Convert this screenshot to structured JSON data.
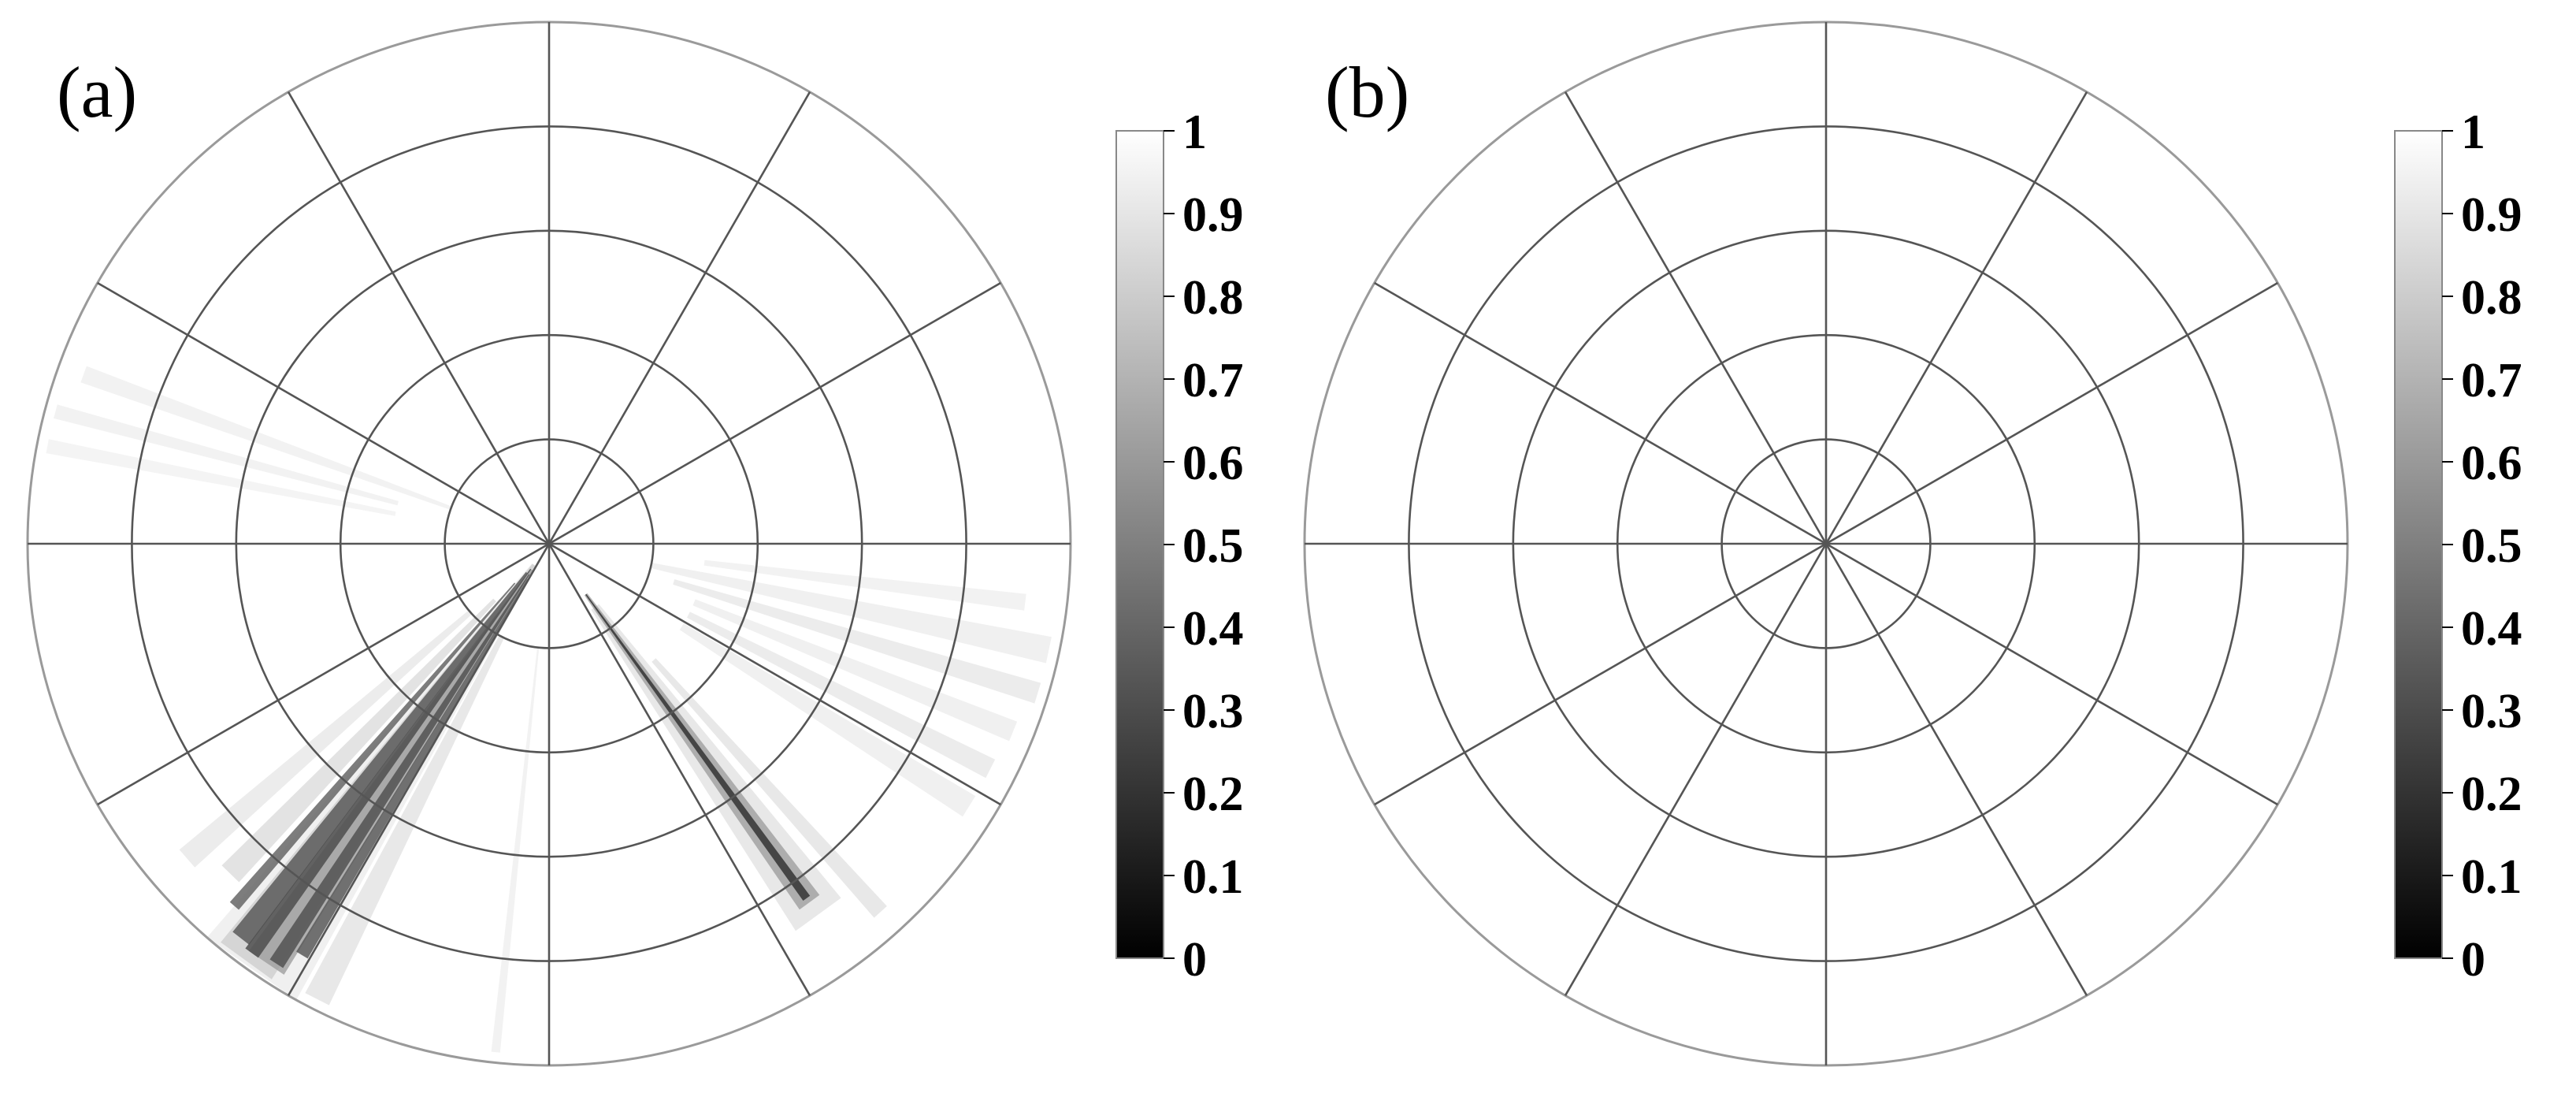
{
  "chart_data": [
    {
      "type": "heatmap",
      "projection": "polar",
      "panel_label": "(a)",
      "grid": true,
      "radial_rings": 5,
      "angular_spokes_deg": [
        0,
        30,
        60,
        90,
        120,
        150,
        180,
        210,
        240,
        270,
        300,
        330
      ],
      "colormap": "gray",
      "colorbar": {
        "range": [
          0,
          1
        ],
        "ticks": [
          "0",
          "0.1",
          "0.2",
          "0.3",
          "0.4",
          "0.5",
          "0.6",
          "0.7",
          "0.8",
          "0.9",
          "1"
        ],
        "placement": "right"
      },
      "background_value": 1,
      "streaks": [
        {
          "angle_deg": 235,
          "r_start": 0.05,
          "r_end": 1.0,
          "half_width_deg": 6.0,
          "value": 0.92
        },
        {
          "angle_deg": 234,
          "r_start": 0.05,
          "r_end": 0.99,
          "half_width_deg": 3.5,
          "value": 0.8
        },
        {
          "angle_deg": 236,
          "r_start": 0.06,
          "r_end": 0.97,
          "half_width_deg": 2.4,
          "value": 0.6
        },
        {
          "angle_deg": 232,
          "r_start": 0.07,
          "r_end": 0.96,
          "half_width_deg": 1.2,
          "value": 0.35
        },
        {
          "angle_deg": 234,
          "r_start": 0.06,
          "r_end": 0.97,
          "half_width_deg": 0.9,
          "value": 0.3
        },
        {
          "angle_deg": 237,
          "r_start": 0.07,
          "r_end": 0.96,
          "half_width_deg": 0.9,
          "value": 0.32
        },
        {
          "angle_deg": 239,
          "r_start": 0.08,
          "r_end": 0.92,
          "half_width_deg": 0.8,
          "value": 0.35
        },
        {
          "angle_deg": 229,
          "r_start": 0.1,
          "r_end": 0.92,
          "half_width_deg": 0.7,
          "value": 0.4
        },
        {
          "angle_deg": 226,
          "r_start": 0.15,
          "r_end": 0.88,
          "half_width_deg": 1.5,
          "value": 0.85
        },
        {
          "angle_deg": 221,
          "r_start": 0.2,
          "r_end": 0.92,
          "half_width_deg": 1.4,
          "value": 0.9
        },
        {
          "angle_deg": 243,
          "r_start": 0.2,
          "r_end": 0.98,
          "half_width_deg": 1.5,
          "value": 0.88
        },
        {
          "angle_deg": 306,
          "r_start": 0.15,
          "r_end": 0.88,
          "half_width_deg": 3.5,
          "value": 0.88
        },
        {
          "angle_deg": 306,
          "r_start": 0.12,
          "r_end": 0.85,
          "half_width_deg": 1.6,
          "value": 0.6
        },
        {
          "angle_deg": 306,
          "r_start": 0.12,
          "r_end": 0.84,
          "half_width_deg": 0.55,
          "value": 0.2
        },
        {
          "angle_deg": 312,
          "r_start": 0.3,
          "r_end": 0.95,
          "half_width_deg": 1.0,
          "value": 0.88
        },
        {
          "angle_deg": 348,
          "r_start": 0.2,
          "r_end": 0.98,
          "half_width_deg": 1.5,
          "value": 0.92
        },
        {
          "angle_deg": 343,
          "r_start": 0.25,
          "r_end": 0.98,
          "half_width_deg": 1.2,
          "value": 0.9
        },
        {
          "angle_deg": 338,
          "r_start": 0.3,
          "r_end": 0.96,
          "half_width_deg": 1.2,
          "value": 0.92
        },
        {
          "angle_deg": 333,
          "r_start": 0.3,
          "r_end": 0.95,
          "half_width_deg": 1.2,
          "value": 0.9
        },
        {
          "angle_deg": 328,
          "r_start": 0.3,
          "r_end": 0.95,
          "half_width_deg": 1.4,
          "value": 0.92
        },
        {
          "angle_deg": 353,
          "r_start": 0.3,
          "r_end": 0.92,
          "half_width_deg": 1.0,
          "value": 0.93
        },
        {
          "angle_deg": 160,
          "r_start": 0.2,
          "r_end": 0.95,
          "half_width_deg": 1.0,
          "value": 0.93
        },
        {
          "angle_deg": 165,
          "r_start": 0.3,
          "r_end": 0.98,
          "half_width_deg": 0.8,
          "value": 0.93
        },
        {
          "angle_deg": 169,
          "r_start": 0.3,
          "r_end": 0.98,
          "half_width_deg": 0.8,
          "value": 0.94
        },
        {
          "angle_deg": 264,
          "r_start": 0.2,
          "r_end": 0.98,
          "half_width_deg": 0.5,
          "value": 0.93
        }
      ]
    },
    {
      "type": "heatmap",
      "projection": "polar",
      "panel_label": "(b)",
      "grid": true,
      "radial_rings": 5,
      "angular_spokes_deg": [
        0,
        30,
        60,
        90,
        120,
        150,
        180,
        210,
        240,
        270,
        300,
        330
      ],
      "colormap": "gray",
      "colorbar": {
        "range": [
          0,
          1
        ],
        "ticks": [
          "0",
          "0.1",
          "0.2",
          "0.3",
          "0.4",
          "0.5",
          "0.6",
          "0.7",
          "0.8",
          "0.9",
          "1"
        ],
        "placement": "right"
      },
      "background_value": 1,
      "streaks": []
    }
  ]
}
